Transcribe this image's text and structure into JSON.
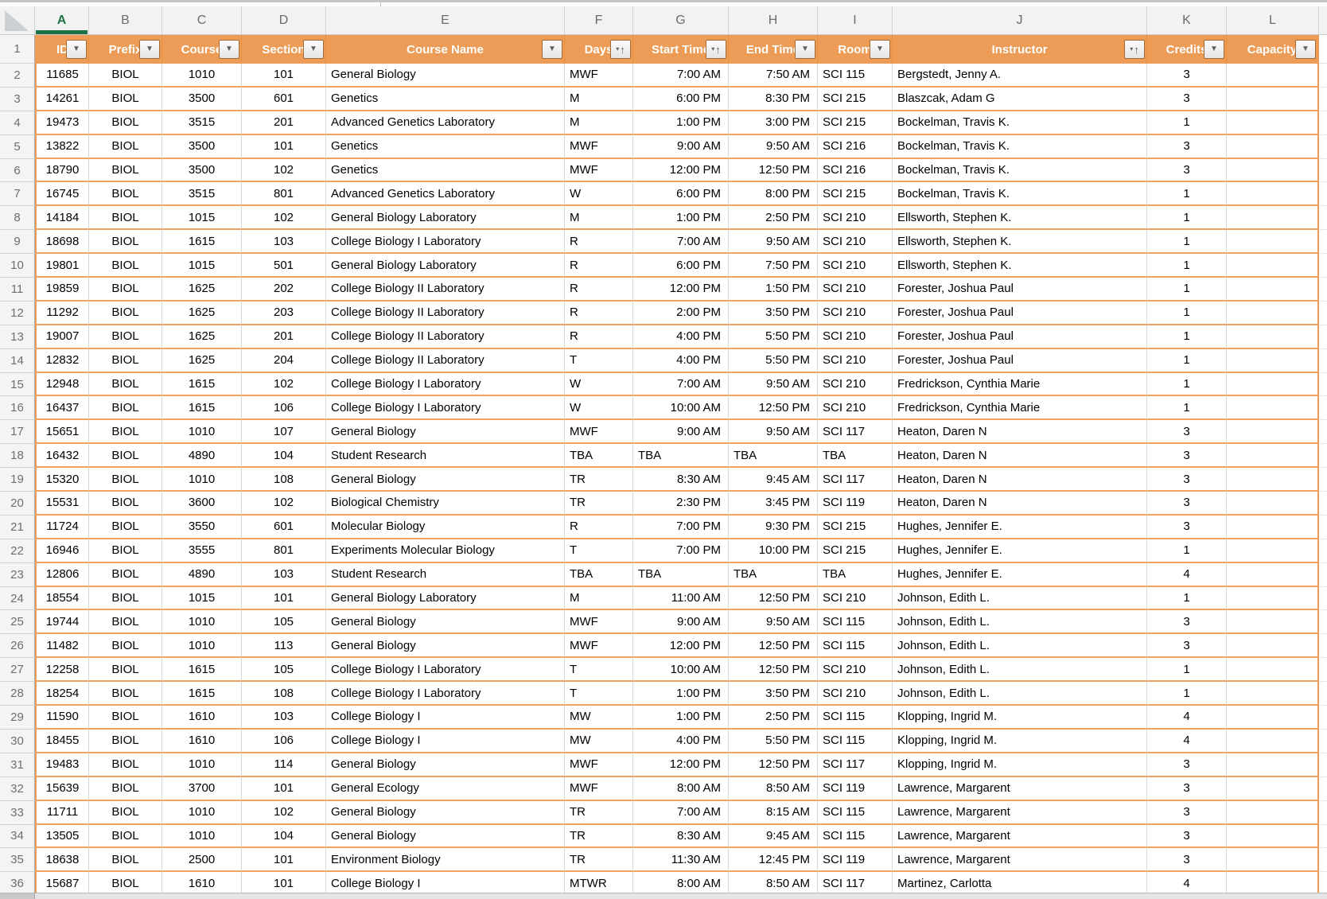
{
  "sheet": {
    "selected_column": "A",
    "column_letters": [
      "A",
      "B",
      "C",
      "D",
      "E",
      "F",
      "G",
      "H",
      "I",
      "J",
      "K",
      "L"
    ],
    "row_numbers": [
      1,
      2,
      3,
      4,
      5,
      6,
      7,
      8,
      9,
      10,
      11,
      12,
      13,
      14,
      15,
      16,
      17,
      18,
      19,
      20,
      21,
      22,
      23,
      24,
      25,
      26,
      27,
      28,
      29,
      30,
      31,
      32,
      33,
      34,
      35,
      36
    ]
  },
  "icons": {
    "filter_glyph": "▼",
    "sort_dropdown_glyph": "▾",
    "sort_up_glyph": "↑"
  },
  "colors": {
    "header_bg": "#ED9C58",
    "row_border": "#F0A25C",
    "selection_green": "#1E7145",
    "grid_gray": "#D8D8D8"
  },
  "table": {
    "headers": [
      {
        "label": "ID",
        "icon": "filter"
      },
      {
        "label": "Prefix",
        "icon": "filter"
      },
      {
        "label": "Course",
        "icon": "filter"
      },
      {
        "label": "Section",
        "icon": "filter"
      },
      {
        "label": "Course Name",
        "icon": "filter"
      },
      {
        "label": "Days",
        "icon": "sort-asc"
      },
      {
        "label": "Start Time",
        "icon": "sort-asc"
      },
      {
        "label": "End Time",
        "icon": "filter"
      },
      {
        "label": "Room",
        "icon": "filter"
      },
      {
        "label": "Instructor",
        "icon": "sort-asc"
      },
      {
        "label": "Credits",
        "icon": "filter"
      },
      {
        "label": "Capacity",
        "icon": "filter"
      }
    ],
    "rows": [
      [
        "11685",
        "BIOL",
        "1010",
        "101",
        "General Biology",
        "MWF",
        "7:00 AM",
        "7:50 AM",
        "SCI 115",
        "Bergstedt, Jenny A.",
        "3",
        ""
      ],
      [
        "14261",
        "BIOL",
        "3500",
        "601",
        "Genetics",
        "M",
        "6:00 PM",
        "8:30 PM",
        "SCI 215",
        "Blaszcak, Adam G",
        "3",
        ""
      ],
      [
        "19473",
        "BIOL",
        "3515",
        "201",
        "Advanced Genetics Laboratory",
        "M",
        "1:00 PM",
        "3:00 PM",
        "SCI 215",
        "Bockelman, Travis K.",
        "1",
        ""
      ],
      [
        "13822",
        "BIOL",
        "3500",
        "101",
        "Genetics",
        "MWF",
        "9:00 AM",
        "9:50 AM",
        "SCI 216",
        "Bockelman, Travis K.",
        "3",
        ""
      ],
      [
        "18790",
        "BIOL",
        "3500",
        "102",
        "Genetics",
        "MWF",
        "12:00 PM",
        "12:50 PM",
        "SCI 216",
        "Bockelman, Travis K.",
        "3",
        ""
      ],
      [
        "16745",
        "BIOL",
        "3515",
        "801",
        "Advanced Genetics Laboratory",
        "W",
        "6:00 PM",
        "8:00 PM",
        "SCI 215",
        "Bockelman, Travis K.",
        "1",
        ""
      ],
      [
        "14184",
        "BIOL",
        "1015",
        "102",
        "General Biology Laboratory",
        "M",
        "1:00 PM",
        "2:50 PM",
        "SCI 210",
        "Ellsworth, Stephen K.",
        "1",
        ""
      ],
      [
        "18698",
        "BIOL",
        "1615",
        "103",
        "College Biology I Laboratory",
        "R",
        "7:00 AM",
        "9:50 AM",
        "SCI 210",
        "Ellsworth, Stephen K.",
        "1",
        ""
      ],
      [
        "19801",
        "BIOL",
        "1015",
        "501",
        "General Biology Laboratory",
        "R",
        "6:00 PM",
        "7:50 PM",
        "SCI 210",
        "Ellsworth, Stephen K.",
        "1",
        ""
      ],
      [
        "19859",
        "BIOL",
        "1625",
        "202",
        "College Biology II Laboratory",
        "R",
        "12:00 PM",
        "1:50 PM",
        "SCI 210",
        "Forester, Joshua Paul",
        "1",
        ""
      ],
      [
        "11292",
        "BIOL",
        "1625",
        "203",
        "College Biology II Laboratory",
        "R",
        "2:00 PM",
        "3:50 PM",
        "SCI 210",
        "Forester, Joshua Paul",
        "1",
        ""
      ],
      [
        "19007",
        "BIOL",
        "1625",
        "201",
        "College Biology II Laboratory",
        "R",
        "4:00 PM",
        "5:50 PM",
        "SCI 210",
        "Forester, Joshua Paul",
        "1",
        ""
      ],
      [
        "12832",
        "BIOL",
        "1625",
        "204",
        "College Biology II Laboratory",
        "T",
        "4:00 PM",
        "5:50 PM",
        "SCI 210",
        "Forester, Joshua Paul",
        "1",
        ""
      ],
      [
        "12948",
        "BIOL",
        "1615",
        "102",
        "College Biology I Laboratory",
        "W",
        "7:00 AM",
        "9:50 AM",
        "SCI 210",
        "Fredrickson, Cynthia Marie",
        "1",
        ""
      ],
      [
        "16437",
        "BIOL",
        "1615",
        "106",
        "College Biology I Laboratory",
        "W",
        "10:00 AM",
        "12:50 PM",
        "SCI 210",
        "Fredrickson, Cynthia Marie",
        "1",
        ""
      ],
      [
        "15651",
        "BIOL",
        "1010",
        "107",
        "General Biology",
        "MWF",
        "9:00 AM",
        "9:50 AM",
        "SCI 117",
        "Heaton, Daren N",
        "3",
        ""
      ],
      [
        "16432",
        "BIOL",
        "4890",
        "104",
        "Student Research",
        "TBA",
        "TBA",
        "TBA",
        "TBA",
        "Heaton, Daren N",
        "3",
        ""
      ],
      [
        "15320",
        "BIOL",
        "1010",
        "108",
        "General Biology",
        "TR",
        "8:30 AM",
        "9:45 AM",
        "SCI 117",
        "Heaton, Daren N",
        "3",
        ""
      ],
      [
        "15531",
        "BIOL",
        "3600",
        "102",
        "Biological Chemistry",
        "TR",
        "2:30 PM",
        "3:45 PM",
        "SCI 119",
        "Heaton, Daren N",
        "3",
        ""
      ],
      [
        "11724",
        "BIOL",
        "3550",
        "601",
        "Molecular Biology",
        "R",
        "7:00 PM",
        "9:30 PM",
        "SCI 215",
        "Hughes, Jennifer E.",
        "3",
        ""
      ],
      [
        "16946",
        "BIOL",
        "3555",
        "801",
        "Experiments Molecular Biology",
        "T",
        "7:00 PM",
        "10:00 PM",
        "SCI 215",
        "Hughes, Jennifer E.",
        "1",
        ""
      ],
      [
        "12806",
        "BIOL",
        "4890",
        "103",
        "Student Research",
        "TBA",
        "TBA",
        "TBA",
        "TBA",
        "Hughes, Jennifer E.",
        "4",
        ""
      ],
      [
        "18554",
        "BIOL",
        "1015",
        "101",
        "General Biology Laboratory",
        "M",
        "11:00 AM",
        "12:50 PM",
        "SCI 210",
        "Johnson, Edith L.",
        "1",
        ""
      ],
      [
        "19744",
        "BIOL",
        "1010",
        "105",
        "General Biology",
        "MWF",
        "9:00 AM",
        "9:50 AM",
        "SCI 115",
        "Johnson, Edith L.",
        "3",
        ""
      ],
      [
        "11482",
        "BIOL",
        "1010",
        "113",
        "General Biology",
        "MWF",
        "12:00 PM",
        "12:50 PM",
        "SCI 115",
        "Johnson, Edith L.",
        "3",
        ""
      ],
      [
        "12258",
        "BIOL",
        "1615",
        "105",
        "College Biology I Laboratory",
        "T",
        "10:00 AM",
        "12:50 PM",
        "SCI 210",
        "Johnson, Edith L.",
        "1",
        ""
      ],
      [
        "18254",
        "BIOL",
        "1615",
        "108",
        "College Biology I Laboratory",
        "T",
        "1:00 PM",
        "3:50 PM",
        "SCI 210",
        "Johnson, Edith L.",
        "1",
        ""
      ],
      [
        "11590",
        "BIOL",
        "1610",
        "103",
        "College Biology I",
        "MW",
        "1:00 PM",
        "2:50 PM",
        "SCI 115",
        "Klopping, Ingrid M.",
        "4",
        ""
      ],
      [
        "18455",
        "BIOL",
        "1610",
        "106",
        "College Biology I",
        "MW",
        "4:00 PM",
        "5:50 PM",
        "SCI 115",
        "Klopping, Ingrid M.",
        "4",
        ""
      ],
      [
        "19483",
        "BIOL",
        "1010",
        "114",
        "General Biology",
        "MWF",
        "12:00 PM",
        "12:50 PM",
        "SCI 117",
        "Klopping, Ingrid M.",
        "3",
        ""
      ],
      [
        "15639",
        "BIOL",
        "3700",
        "101",
        "General Ecology",
        "MWF",
        "8:00 AM",
        "8:50 AM",
        "SCI 119",
        "Lawrence, Margarent",
        "3",
        ""
      ],
      [
        "11711",
        "BIOL",
        "1010",
        "102",
        "General Biology",
        "TR",
        "7:00 AM",
        "8:15 AM",
        "SCI 115",
        "Lawrence, Margarent",
        "3",
        ""
      ],
      [
        "13505",
        "BIOL",
        "1010",
        "104",
        "General Biology",
        "TR",
        "8:30 AM",
        "9:45 AM",
        "SCI 115",
        "Lawrence, Margarent",
        "3",
        ""
      ],
      [
        "18638",
        "BIOL",
        "2500",
        "101",
        "Environment Biology",
        "TR",
        "11:30 AM",
        "12:45 PM",
        "SCI 119",
        "Lawrence, Margarent",
        "3",
        ""
      ],
      [
        "15687",
        "BIOL",
        "1610",
        "101",
        "College Biology I",
        "MTWR",
        "8:00 AM",
        "8:50 AM",
        "SCI 117",
        "Martinez, Carlotta",
        "4",
        ""
      ]
    ]
  }
}
